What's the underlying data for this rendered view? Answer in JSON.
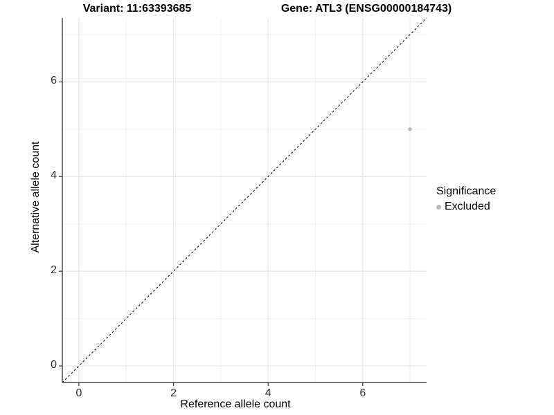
{
  "titles": {
    "variant": "Variant: 11:63393685",
    "gene": "Gene: ATL3 (ENSG00000184743)"
  },
  "legend": {
    "title": "Significance",
    "items": [
      {
        "label": "Excluded",
        "color": "#b9b9b9",
        "marker": "circle"
      }
    ]
  },
  "chart_data": {
    "type": "scatter",
    "title": "",
    "xlabel": "Reference allele count",
    "ylabel": "Alternative allele count",
    "xlim": [
      -0.35,
      7.35
    ],
    "ylim": [
      -0.35,
      7.35
    ],
    "x_major_ticks": [
      0,
      2,
      4,
      6
    ],
    "y_major_ticks": [
      0,
      2,
      4,
      6
    ],
    "x_minor_gridlines": [
      1,
      3,
      5,
      7
    ],
    "y_minor_gridlines": [
      1,
      3,
      5,
      7
    ],
    "grid": true,
    "legend_position": "right",
    "series": [
      {
        "name": "Excluded",
        "color": "#bdbdbd",
        "points": [
          {
            "x": 7,
            "y": 5
          }
        ]
      }
    ],
    "reference_line": {
      "type": "identity",
      "style": "dashed",
      "color": "#000000"
    }
  },
  "colors": {
    "background": "#ffffff",
    "grid_major": "#e5e5e5",
    "grid_minor": "#f1f1f1",
    "axis_line": "#4a4a4a",
    "tick_mark": "#333333"
  }
}
